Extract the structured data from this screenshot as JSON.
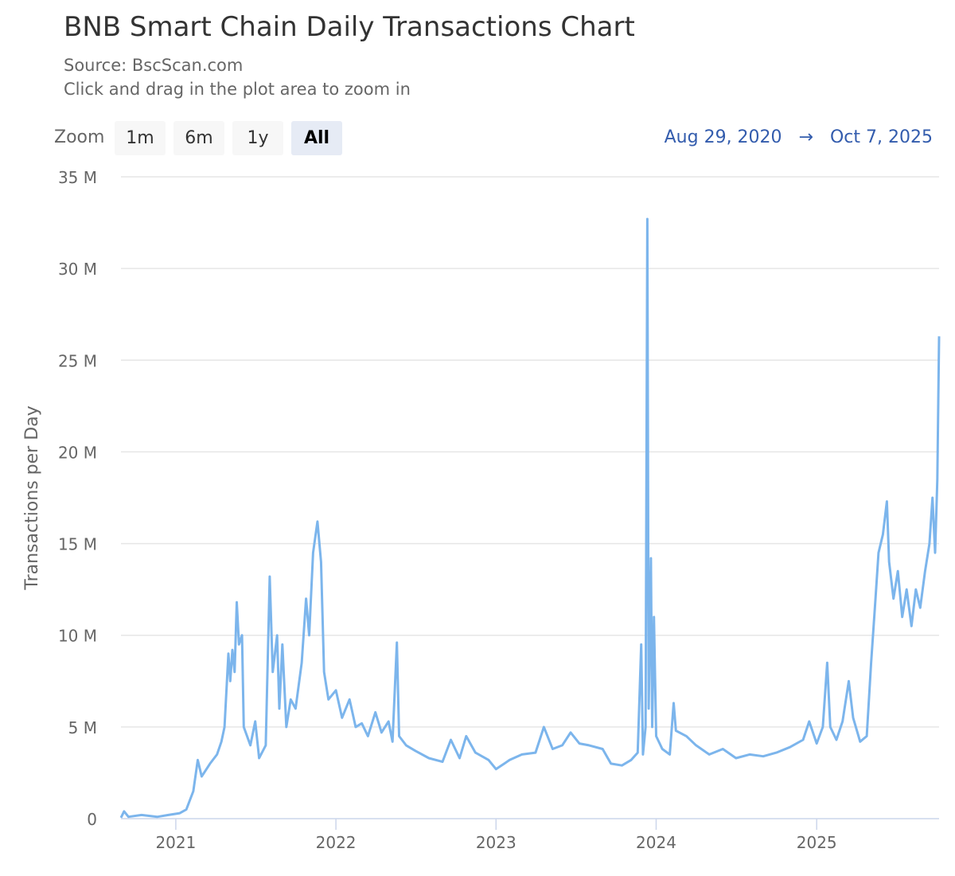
{
  "header": {
    "title": "BNB Smart Chain Daily Transactions Chart",
    "source": "Source: BscScan.com",
    "hint": "Click and drag in the plot area to zoom in"
  },
  "zoom": {
    "label": "Zoom",
    "buttons": [
      "1m",
      "6m",
      "1y",
      "All"
    ],
    "selected": "All"
  },
  "range": {
    "from": "Aug 29, 2020",
    "arrow": "→",
    "to": "Oct 7, 2025"
  },
  "chart_data": {
    "type": "line",
    "title": "BNB Smart Chain Daily Transactions Chart",
    "ylabel": "Transactions per Day",
    "xlabel": "",
    "ylim": [
      0,
      35000000
    ],
    "xlim": [
      "2020-08-29",
      "2025-10-07"
    ],
    "yticks": [
      0,
      5000000,
      10000000,
      15000000,
      20000000,
      25000000,
      30000000,
      35000000
    ],
    "ytick_labels": [
      "0",
      "5 M",
      "10 M",
      "15 M",
      "20 M",
      "25 M",
      "30 M",
      "35 M"
    ],
    "xticks": [
      "2021-01-01",
      "2022-01-01",
      "2023-01-01",
      "2024-01-01",
      "2025-01-01"
    ],
    "xtick_labels": [
      "2021",
      "2022",
      "2023",
      "2024",
      "2025"
    ],
    "grid": true,
    "color": "#7cb5ec",
    "series": [
      {
        "x": [
          "2020-08-29",
          "2020-09-05",
          "2020-09-15",
          "2020-10-15",
          "2020-11-20",
          "2020-12-15",
          "2021-01-10",
          "2021-01-25",
          "2021-02-10",
          "2021-02-20",
          "2021-03-01",
          "2021-03-20",
          "2021-04-05",
          "2021-04-15",
          "2021-04-22",
          "2021-05-01",
          "2021-05-05",
          "2021-05-10",
          "2021-05-15",
          "2021-05-20",
          "2021-05-25",
          "2021-06-01",
          "2021-06-05",
          "2021-06-20",
          "2021-07-01",
          "2021-07-10",
          "2021-07-25",
          "2021-08-03",
          "2021-08-10",
          "2021-08-20",
          "2021-08-25",
          "2021-09-01",
          "2021-09-10",
          "2021-09-20",
          "2021-10-01",
          "2021-10-15",
          "2021-10-25",
          "2021-11-01",
          "2021-11-10",
          "2021-11-20",
          "2021-11-28",
          "2021-12-05",
          "2021-12-15",
          "2022-01-01",
          "2022-01-15",
          "2022-02-01",
          "2022-02-15",
          "2022-03-01",
          "2022-03-15",
          "2022-04-01",
          "2022-04-15",
          "2022-05-01",
          "2022-05-10",
          "2022-05-20",
          "2022-05-25",
          "2022-06-10",
          "2022-07-01",
          "2022-08-01",
          "2022-09-01",
          "2022-09-20",
          "2022-10-10",
          "2022-10-25",
          "2022-11-15",
          "2022-12-15",
          "2023-01-01",
          "2023-02-01",
          "2023-03-01",
          "2023-04-01",
          "2023-04-20",
          "2023-05-10",
          "2023-06-01",
          "2023-06-20",
          "2023-07-10",
          "2023-08-01",
          "2023-09-01",
          "2023-09-20",
          "2023-10-15",
          "2023-11-05",
          "2023-11-20",
          "2023-11-28",
          "2023-12-02",
          "2023-12-08",
          "2023-12-12",
          "2023-12-15",
          "2023-12-20",
          "2023-12-23",
          "2023-12-27",
          "2024-01-01",
          "2024-01-15",
          "2024-02-01",
          "2024-02-10",
          "2024-02-15",
          "2024-03-10",
          "2024-04-01",
          "2024-05-01",
          "2024-06-01",
          "2024-07-01",
          "2024-08-01",
          "2024-09-01",
          "2024-10-01",
          "2024-11-01",
          "2024-12-01",
          "2024-12-15",
          "2025-01-01",
          "2025-01-15",
          "2025-01-25",
          "2025-02-01",
          "2025-02-15",
          "2025-03-01",
          "2025-03-15",
          "2025-03-25",
          "2025-04-10",
          "2025-04-25",
          "2025-05-05",
          "2025-05-15",
          "2025-05-22",
          "2025-06-01",
          "2025-06-10",
          "2025-06-15",
          "2025-06-25",
          "2025-07-05",
          "2025-07-15",
          "2025-07-25",
          "2025-08-05",
          "2025-08-15",
          "2025-08-25",
          "2025-09-05",
          "2025-09-15",
          "2025-09-22",
          "2025-09-28",
          "2025-10-03",
          "2025-10-07"
        ],
        "y": [
          0.05,
          0.4,
          0.1,
          0.2,
          0.1,
          0.2,
          0.3,
          0.5,
          1.5,
          3.2,
          2.3,
          3.0,
          3.5,
          4.2,
          5,
          9,
          7.5,
          9.2,
          8,
          11.8,
          9.5,
          10,
          5,
          4,
          5.3,
          3.3,
          4,
          13.2,
          8,
          10,
          6,
          9.5,
          5,
          6.5,
          6,
          8.5,
          12,
          10,
          14.5,
          16.2,
          14,
          8,
          6.5,
          7,
          5.5,
          6.5,
          5,
          5.2,
          4.5,
          5.8,
          4.7,
          5.3,
          4.2,
          9.6,
          4.5,
          4.0,
          3.7,
          3.3,
          3.1,
          4.3,
          3.3,
          4.5,
          3.6,
          3.2,
          2.7,
          3.2,
          3.5,
          3.6,
          5.0,
          3.8,
          4.0,
          4.7,
          4.1,
          4.0,
          3.8,
          3.0,
          2.9,
          3.2,
          3.6,
          9.5,
          3.5,
          5,
          32.7,
          6,
          14.2,
          5,
          11,
          4.5,
          3.8,
          3.5,
          6.3,
          4.8,
          4.5,
          4.0,
          3.5,
          3.8,
          3.3,
          3.5,
          3.4,
          3.6,
          3.9,
          4.3,
          5.3,
          4.1,
          5.0,
          8.5,
          5,
          4.3,
          5.3,
          7.5,
          5.5,
          4.2,
          4.5,
          8.5,
          12,
          14.5,
          15.5,
          17.3,
          14,
          12,
          13.5,
          11,
          12.5,
          10.5,
          12.5,
          11.5,
          13.5,
          15,
          17.5,
          14.5,
          18.5,
          26.3
        ],
        "y_unit": "M"
      }
    ]
  }
}
